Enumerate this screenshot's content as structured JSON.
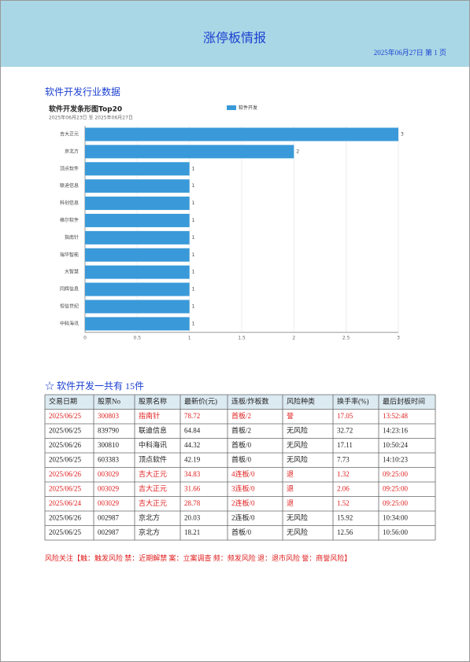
{
  "header": {
    "title": "涨停板情报",
    "date_page": "2025年06月27日 第 1 页"
  },
  "section_title": "软件开发行业数据",
  "chart_data": {
    "type": "barh",
    "title": "软件开发条形图Top20",
    "subtitle": "2025年06月23日 至 2025年06月27日",
    "categories": [
      "吉大正元",
      "京北方",
      "顶点软件",
      "联迪信息",
      "科创信息",
      "格尔软件",
      "指南针",
      "瑞华智能",
      "大智慧",
      "同辉信息",
      "恒信世纪",
      "中科海讯"
    ],
    "series": [
      {
        "name": "软件开发",
        "color": "#3a9ad9",
        "values": [
          3,
          2,
          1,
          1,
          1,
          1,
          1,
          1,
          1,
          1,
          1,
          1
        ]
      }
    ],
    "xlim": [
      0,
      3
    ],
    "xticks": [
      0,
      0.5,
      1,
      1.5,
      2,
      2.5,
      3
    ],
    "grid": true,
    "legend": "top"
  },
  "summary": "☆ 软件开发一共有 15件",
  "table": {
    "columns": [
      "交易日期",
      "股票No",
      "股票名称",
      "最新价(元)",
      "连板/炸板数",
      "风险种类",
      "换手率(%)",
      "最后封板时间"
    ],
    "rows": [
      [
        "2025/06/25",
        "300803",
        "指南针",
        "78.72",
        "首板/2",
        "誉",
        "17.05",
        "13:52:48"
      ],
      [
        "2025/06/25",
        "839790",
        "联迪信息",
        "64.84",
        "首板/2",
        "无风险",
        "32.72",
        "14:23:16"
      ],
      [
        "2025/06/26",
        "300810",
        "中科海讯",
        "44.32",
        "首板/0",
        "无风险",
        "17.11",
        "10:50:24"
      ],
      [
        "2025/06/25",
        "603383",
        "顶点软件",
        "42.19",
        "首板/0",
        "无风险",
        "7.73",
        "14:10:23"
      ],
      [
        "2025/06/26",
        "003029",
        "吉大正元",
        "34.83",
        "4连板/0",
        "退",
        "1.32",
        "09:25:00"
      ],
      [
        "2025/06/25",
        "003029",
        "吉大正元",
        "31.66",
        "3连板/0",
        "退",
        "2.06",
        "09:25:00"
      ],
      [
        "2025/06/24",
        "003029",
        "吉大正元",
        "28.78",
        "2连板/0",
        "退",
        "1.52",
        "09:25:00"
      ],
      [
        "2025/06/26",
        "002987",
        "京北方",
        "20.03",
        "2连板/0",
        "无风险",
        "15.92",
        "10:34:00"
      ],
      [
        "2025/06/25",
        "002987",
        "京北方",
        "18.21",
        "首板/0",
        "无风险",
        "12.56",
        "10:56:00"
      ]
    ],
    "row_colors": [
      "#e02020",
      "#222222",
      "#222222",
      "#222222",
      "#e02020",
      "#e02020",
      "#e02020",
      "#222222",
      "#222222"
    ]
  },
  "footer": "风险关注【触：触发风险 禁：近期解禁 案：立案调查 频：频发风险 退：退市风险 誉：商誉风险】"
}
